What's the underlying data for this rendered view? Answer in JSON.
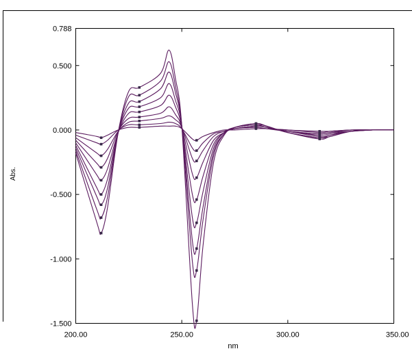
{
  "chart_data": {
    "type": "line",
    "xlabel": "nm",
    "ylabel": "Abs.",
    "xlim": [
      200,
      350
    ],
    "ylim": [
      -1.5,
      0.788
    ],
    "x_ticks": [
      "200.00",
      "250.00",
      "300.00",
      "350.00"
    ],
    "y_ticks": [
      "0.788",
      "0.500",
      "0.000",
      "-0.500",
      "-1.000",
      "-1.500"
    ],
    "y_tick_values": [
      0.788,
      0.5,
      0.0,
      -0.5,
      -1.0,
      -1.5
    ],
    "grid": false,
    "line_color": "#5a1a5e",
    "marker_color": "#3a2a4a",
    "series": [
      {
        "x": [
          200,
          210,
          212,
          215,
          220,
          225,
          230,
          240,
          244,
          247,
          250,
          255,
          257,
          260,
          265,
          270,
          275,
          285,
          290,
          300,
          315,
          320,
          330,
          340,
          350
        ],
        "y": [
          -0.18,
          -0.72,
          -0.8,
          -0.6,
          -0.02,
          0.3,
          0.33,
          0.44,
          0.62,
          0.4,
          0.03,
          -1.35,
          -1.48,
          -0.9,
          -0.25,
          -0.04,
          0.02,
          0.05,
          0.03,
          -0.02,
          -0.07,
          -0.05,
          -0.01,
          0.0,
          0.0
        ]
      },
      {
        "x": [
          200,
          210,
          212,
          215,
          220,
          225,
          230,
          240,
          244,
          247,
          250,
          255,
          257,
          260,
          265,
          270,
          275,
          285,
          290,
          300,
          315,
          320,
          330,
          340,
          350
        ],
        "y": [
          -0.16,
          -0.62,
          -0.68,
          -0.52,
          -0.02,
          0.26,
          0.27,
          0.38,
          0.53,
          0.34,
          0.03,
          -1.02,
          -1.09,
          -0.7,
          -0.2,
          -0.03,
          0.02,
          0.05,
          0.03,
          -0.02,
          -0.06,
          -0.05,
          -0.01,
          0.0,
          0.0
        ]
      },
      {
        "x": [
          200,
          210,
          212,
          215,
          220,
          225,
          230,
          240,
          244,
          247,
          250,
          255,
          257,
          260,
          265,
          270,
          275,
          285,
          290,
          300,
          315,
          320,
          330,
          340,
          350
        ],
        "y": [
          -0.14,
          -0.52,
          -0.58,
          -0.45,
          -0.02,
          0.21,
          0.22,
          0.32,
          0.45,
          0.29,
          0.03,
          -0.86,
          -0.92,
          -0.6,
          -0.17,
          -0.03,
          0.02,
          0.04,
          0.03,
          -0.02,
          -0.06,
          -0.04,
          -0.01,
          0.0,
          0.0
        ]
      },
      {
        "x": [
          200,
          210,
          212,
          215,
          220,
          225,
          230,
          240,
          244,
          247,
          250,
          255,
          257,
          260,
          265,
          270,
          275,
          285,
          290,
          300,
          315,
          320,
          330,
          340,
          350
        ],
        "y": [
          -0.12,
          -0.45,
          -0.5,
          -0.38,
          -0.02,
          0.17,
          0.18,
          0.25,
          0.36,
          0.23,
          0.03,
          -0.68,
          -0.72,
          -0.48,
          -0.14,
          -0.02,
          0.02,
          0.04,
          0.02,
          -0.01,
          -0.05,
          -0.04,
          -0.01,
          0.0,
          0.0
        ]
      },
      {
        "x": [
          200,
          210,
          212,
          215,
          220,
          225,
          230,
          240,
          244,
          247,
          250,
          255,
          257,
          260,
          265,
          270,
          275,
          285,
          290,
          300,
          315,
          320,
          330,
          340,
          350
        ],
        "y": [
          -0.1,
          -0.35,
          -0.39,
          -0.3,
          -0.02,
          0.13,
          0.14,
          0.19,
          0.27,
          0.18,
          0.02,
          -0.5,
          -0.54,
          -0.36,
          -0.11,
          -0.02,
          0.01,
          0.03,
          0.02,
          -0.01,
          -0.04,
          -0.03,
          -0.01,
          0.0,
          0.0
        ]
      },
      {
        "x": [
          200,
          210,
          212,
          215,
          220,
          225,
          230,
          240,
          244,
          247,
          250,
          255,
          257,
          260,
          265,
          270,
          275,
          285,
          290,
          300,
          315,
          320,
          330,
          340,
          350
        ],
        "y": [
          -0.08,
          -0.26,
          -0.29,
          -0.22,
          -0.01,
          0.09,
          0.1,
          0.13,
          0.18,
          0.12,
          0.02,
          -0.34,
          -0.37,
          -0.25,
          -0.08,
          -0.02,
          0.01,
          0.03,
          0.02,
          -0.01,
          -0.03,
          -0.02,
          -0.01,
          0.0,
          0.0
        ]
      },
      {
        "x": [
          200,
          210,
          212,
          215,
          220,
          225,
          230,
          240,
          244,
          247,
          250,
          255,
          257,
          260,
          265,
          270,
          275,
          285,
          290,
          300,
          315,
          320,
          330,
          340,
          350
        ],
        "y": [
          -0.06,
          -0.18,
          -0.2,
          -0.15,
          -0.01,
          0.06,
          0.07,
          0.09,
          0.11,
          0.08,
          0.02,
          -0.22,
          -0.24,
          -0.16,
          -0.05,
          -0.01,
          0.01,
          0.02,
          0.01,
          -0.01,
          -0.03,
          -0.02,
          0.0,
          0.0,
          0.0
        ]
      },
      {
        "x": [
          200,
          210,
          212,
          215,
          220,
          225,
          230,
          240,
          244,
          247,
          250,
          255,
          257,
          260,
          265,
          270,
          275,
          285,
          290,
          300,
          315,
          320,
          330,
          340,
          350
        ],
        "y": [
          -0.04,
          -0.1,
          -0.11,
          -0.08,
          0.0,
          0.04,
          0.04,
          0.05,
          0.06,
          0.05,
          0.01,
          -0.14,
          -0.16,
          -0.1,
          -0.03,
          -0.01,
          0.01,
          0.02,
          0.01,
          0.0,
          -0.02,
          -0.01,
          0.0,
          0.0,
          0.0
        ]
      },
      {
        "x": [
          200,
          210,
          212,
          215,
          220,
          225,
          230,
          240,
          244,
          247,
          250,
          255,
          257,
          260,
          265,
          270,
          275,
          285,
          290,
          300,
          315,
          320,
          330,
          340,
          350
        ],
        "y": [
          -0.02,
          -0.05,
          -0.06,
          -0.04,
          0.0,
          0.02,
          0.02,
          0.03,
          0.03,
          0.03,
          0.01,
          -0.07,
          -0.08,
          -0.05,
          -0.02,
          0.0,
          0.0,
          0.01,
          0.01,
          0.0,
          -0.01,
          -0.01,
          0.0,
          0.0,
          0.0
        ]
      }
    ]
  }
}
